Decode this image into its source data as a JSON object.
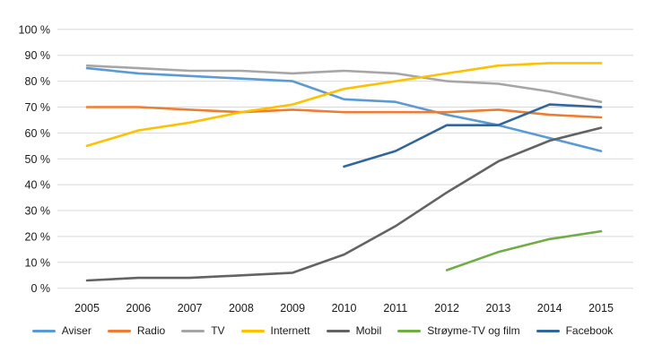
{
  "figure": {
    "background": "#ffffff",
    "gridline_color": "#d9d9d9",
    "text_color": "#1a1a1a"
  },
  "chart_data": {
    "type": "line",
    "title": "",
    "xlabel": "",
    "ylabel": "",
    "x": [
      2005,
      2006,
      2007,
      2008,
      2009,
      2010,
      2011,
      2012,
      2013,
      2014,
      2015
    ],
    "x_labels": [
      "2005",
      "2006",
      "2007",
      "2008",
      "2009",
      "2010",
      "2011",
      "2012",
      "2013",
      "2014",
      "2015"
    ],
    "ylim": [
      0,
      100
    ],
    "y_tick_values": [
      0,
      10,
      20,
      30,
      40,
      50,
      60,
      70,
      80,
      90,
      100
    ],
    "y_tick_labels": [
      "0 %",
      "10 %",
      "20 %",
      "30 %",
      "40 %",
      "50 %",
      "60 %",
      "70 %",
      "80 %",
      "90 %",
      "100 %"
    ],
    "grid": true,
    "legend_position": "bottom",
    "series": [
      {
        "name": "Aviser",
        "color": "#5b9bd5",
        "values": [
          85,
          83,
          82,
          81,
          80,
          73,
          72,
          67,
          63,
          58,
          53
        ]
      },
      {
        "name": "Radio",
        "color": "#ed7d31",
        "values": [
          70,
          70,
          69,
          68,
          69,
          68,
          68,
          68,
          69,
          67,
          66
        ]
      },
      {
        "name": "TV",
        "color": "#a6a6a6",
        "values": [
          86,
          85,
          84,
          84,
          83,
          84,
          83,
          80,
          79,
          76,
          72
        ]
      },
      {
        "name": "Internett",
        "color": "#ffc000",
        "values": [
          55,
          61,
          64,
          68,
          71,
          77,
          80,
          83,
          86,
          87,
          87
        ]
      },
      {
        "name": "Mobil",
        "color": "#636363",
        "values": [
          3,
          4,
          4,
          5,
          6,
          13,
          24,
          37,
          49,
          57,
          62
        ]
      },
      {
        "name": "Strøyme-TV og film",
        "color": "#70ad47",
        "values": [
          null,
          null,
          null,
          null,
          null,
          null,
          null,
          7,
          14,
          19,
          22
        ]
      },
      {
        "name": "Facebook",
        "color": "#31689b",
        "values": [
          null,
          null,
          null,
          null,
          null,
          47,
          53,
          63,
          63,
          71,
          70
        ]
      }
    ]
  }
}
